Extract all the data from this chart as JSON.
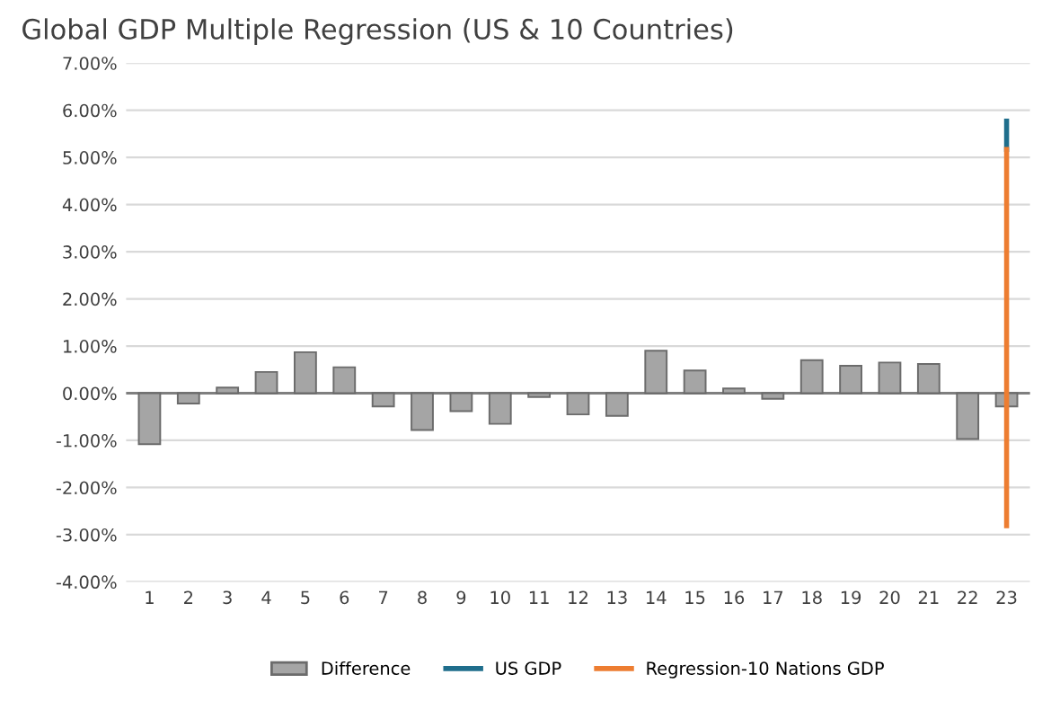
{
  "chart_data": {
    "type": "bar",
    "title": "Global GDP Multiple Regression (US & 10 Countries)",
    "categories": [
      "1",
      "2",
      "3",
      "4",
      "5",
      "6",
      "7",
      "8",
      "9",
      "10",
      "11",
      "12",
      "13",
      "14",
      "15",
      "16",
      "17",
      "18",
      "19",
      "20",
      "21",
      "22",
      "23"
    ],
    "series": [
      {
        "name": "Difference",
        "color": "#a5a5a5",
        "values": [
          -1.08,
          -0.22,
          0.12,
          0.45,
          0.87,
          0.55,
          -0.28,
          -0.78,
          -0.38,
          -0.65,
          -0.08,
          -0.45,
          -0.48,
          0.9,
          0.48,
          0.1,
          -0.12,
          0.7,
          0.58,
          0.65,
          0.62,
          -0.97,
          -0.28
        ]
      },
      {
        "name": "US GDP",
        "type": "line",
        "color": "#1f6e8c",
        "x": [
          "23",
          "23"
        ],
        "values": [
          5.77,
          5.17
        ]
      },
      {
        "name": "Regression-10 Nations GDP",
        "type": "line",
        "color": "#ed7d31",
        "x": [
          "23",
          "23"
        ],
        "values": [
          5.17,
          -2.81
        ]
      }
    ],
    "ylim": [
      -4,
      7
    ],
    "yticks": [
      {
        "value": -4,
        "label": "-4.00%"
      },
      {
        "value": -3,
        "label": "-3.00%"
      },
      {
        "value": -2,
        "label": "-2.00%"
      },
      {
        "value": -1,
        "label": "-1.00%"
      },
      {
        "value": 0,
        "label": "0.00%"
      },
      {
        "value": 1,
        "label": "1.00%"
      },
      {
        "value": 2,
        "label": "2.00%"
      },
      {
        "value": 3,
        "label": "3.00%"
      },
      {
        "value": 4,
        "label": "4.00%"
      },
      {
        "value": 5,
        "label": "5.00%"
      },
      {
        "value": 6,
        "label": "6.00%"
      },
      {
        "value": 7,
        "label": "7.00%"
      }
    ],
    "grid": "y",
    "legend": "bottom"
  }
}
